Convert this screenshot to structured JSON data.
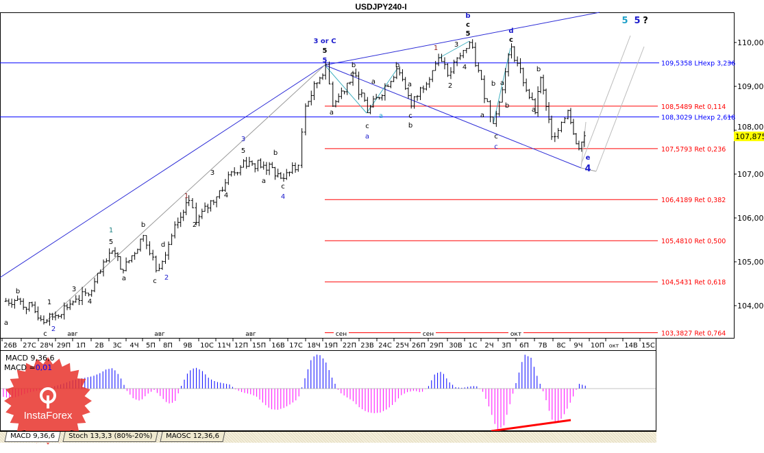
{
  "title": "USDJPY240-I",
  "chart_data": {
    "type": "ohlc-line",
    "symbol": "USDJPY240-I",
    "ylim": [
      103.25,
      110.7
    ],
    "y_ticks": [
      "110,000",
      "109,000",
      "108,000",
      "107,000",
      "106,000",
      "105,000",
      "104,000"
    ],
    "y_tick_values": [
      110,
      109,
      108,
      107,
      106,
      105,
      104
    ],
    "current_price": 107.875,
    "current_price_label": "107,875",
    "x_ticks": [
      "26В",
      "27С",
      "28Ч",
      "29П",
      "1П",
      "2В",
      "3С",
      "4Ч",
      "5П",
      "8П",
      "9В",
      "10С",
      "11Ч",
      "12П",
      "15П",
      "16В",
      "17С",
      "18Ч",
      "19П",
      "22П",
      "23В",
      "24С",
      "25Ч",
      "26П",
      "29П",
      "30В",
      "1С",
      "2Ч",
      "3П",
      "6П",
      "7В",
      "8С",
      "9Ч",
      "10П",
      "окт",
      "14В",
      "15С"
    ],
    "month_marks": [
      "авг",
      "авг",
      "авг",
      "сен",
      "сен",
      "окт"
    ],
    "price_pivots": [
      {
        "day": -0.4,
        "price": 104.1
      },
      {
        "day": 0.4,
        "price": 104.15
      },
      {
        "day": 2.0,
        "price": 103.65
      },
      {
        "day": 3.6,
        "price": 104.15
      },
      {
        "day": 4.3,
        "price": 104.25
      },
      {
        "day": 5.6,
        "price": 105.25
      },
      {
        "day": 6.2,
        "price": 104.8
      },
      {
        "day": 7.3,
        "price": 105.6
      },
      {
        "day": 8.0,
        "price": 104.8
      },
      {
        "day": 9.2,
        "price": 105.9
      },
      {
        "day": 9.8,
        "price": 106.4
      },
      {
        "day": 10.2,
        "price": 105.9
      },
      {
        "day": 11.8,
        "price": 106.8
      },
      {
        "day": 12.8,
        "price": 107.3
      },
      {
        "day": 13.9,
        "price": 107.2
      },
      {
        "day": 15.0,
        "price": 106.9
      },
      {
        "day": 15.8,
        "price": 107.2
      },
      {
        "day": 16.2,
        "price": 108.55
      },
      {
        "day": 17.3,
        "price": 109.5
      },
      {
        "day": 17.7,
        "price": 108.55
      },
      {
        "day": 18.8,
        "price": 109.3
      },
      {
        "day": 19.6,
        "price": 108.4
      },
      {
        "day": 21.2,
        "price": 109.4
      },
      {
        "day": 22.0,
        "price": 108.55
      },
      {
        "day": 23.5,
        "price": 109.65
      },
      {
        "day": 24.0,
        "price": 109.25
      },
      {
        "day": 25.2,
        "price": 110.0
      },
      {
        "day": 26.5,
        "price": 108.15
      },
      {
        "day": 27.5,
        "price": 109.9
      },
      {
        "day": 28.8,
        "price": 108.4
      },
      {
        "day": 29.1,
        "price": 109.2
      },
      {
        "day": 29.7,
        "price": 107.85
      },
      {
        "day": 30.6,
        "price": 108.45
      },
      {
        "day": 31.2,
        "price": 107.58
      },
      {
        "day": 31.5,
        "price": 107.875
      }
    ],
    "levels": [
      {
        "price": 109.5358,
        "label": "109,5358 LHexp 3,236",
        "color": "#0000ff"
      },
      {
        "price": 108.5489,
        "label": "108,5489 Ret 0,114",
        "color": "#ff0000"
      },
      {
        "price": 108.3029,
        "label": "108,3029 LHexp 2,618",
        "color": "#0000ff"
      },
      {
        "price": 107.5793,
        "label": "107,5793 Ret 0,236",
        "color": "#ff0000"
      },
      {
        "price": 106.4189,
        "label": "106,4189 Ret 0,382",
        "color": "#ff0000"
      },
      {
        "price": 105.481,
        "label": "105,4810 Ret 0,500",
        "color": "#ff0000"
      },
      {
        "price": 104.5431,
        "label": "104,5431 Ret 0,618",
        "color": "#ff0000"
      },
      {
        "price": 103.3827,
        "label": "103,3827 Ret 0,764",
        "color": "#ff0000"
      }
    ],
    "wave_labels": [
      {
        "text": "3 or C",
        "color": "#1a1acc"
      },
      {
        "text": "5",
        "color": "#000"
      },
      {
        "text": "5",
        "color": "#1a1acc"
      },
      {
        "text": "b",
        "color": "#1a1acc"
      },
      {
        "text": "c",
        "color": "#000"
      },
      {
        "text": "5",
        "color": "#000"
      },
      {
        "text": "d",
        "color": "#1a1acc"
      },
      {
        "text": "c",
        "color": "#000"
      },
      {
        "text": "5",
        "color": "#1ea0c8"
      },
      {
        "text": "5",
        "color": "#1a1acc"
      },
      {
        "text": "?",
        "color": "#000"
      },
      {
        "text": "e",
        "color": "#1a1acc"
      },
      {
        "text": "4",
        "color": "#1a1acc"
      },
      {
        "text": "a",
        "color": "#1a1acc"
      },
      {
        "text": "c",
        "color": "#000"
      },
      {
        "text": "c",
        "color": "#000"
      },
      {
        "text": "c",
        "color": "#1a1acc"
      },
      {
        "text": "b",
        "color": "#000"
      },
      {
        "text": "c",
        "color": "#000"
      },
      {
        "text": "a",
        "color": "#000"
      },
      {
        "text": "a",
        "color": "#1ea0c8"
      },
      {
        "text": "b",
        "color": "#000"
      },
      {
        "text": "c",
        "color": "#000"
      },
      {
        "text": "a",
        "color": "#000"
      },
      {
        "text": "b",
        "color": "#000"
      },
      {
        "text": "a",
        "color": "#000"
      },
      {
        "text": "1",
        "color": "#8b1a1a"
      },
      {
        "text": "3",
        "color": "#000"
      },
      {
        "text": "4",
        "color": "#000"
      },
      {
        "text": "2",
        "color": "#000"
      },
      {
        "text": "a",
        "color": "#000"
      },
      {
        "text": "b",
        "color": "#000"
      },
      {
        "text": "a",
        "color": "#000"
      },
      {
        "text": "b",
        "color": "#000"
      },
      {
        "text": "a",
        "color": "#000"
      },
      {
        "text": "b",
        "color": "#000"
      },
      {
        "text": "1",
        "color": "#1a8080"
      },
      {
        "text": "5",
        "color": "#000"
      },
      {
        "text": "b",
        "color": "#000"
      },
      {
        "text": "d",
        "color": "#000"
      },
      {
        "text": "a",
        "color": "#000"
      },
      {
        "text": "c",
        "color": "#000"
      },
      {
        "text": "2",
        "color": "#1a1acc"
      },
      {
        "text": "3",
        "color": "#000"
      },
      {
        "text": "4",
        "color": "#000"
      },
      {
        "text": "1",
        "color": "#000"
      },
      {
        "text": "2",
        "color": "#1a1acc"
      },
      {
        "text": "c",
        "color": "#000"
      },
      {
        "text": "b",
        "color": "#000"
      },
      {
        "text": "a",
        "color": "#000"
      },
      {
        "text": "1",
        "color": "#8b1a1a"
      },
      {
        "text": "2",
        "color": "#000"
      },
      {
        "text": "3",
        "color": "#000"
      },
      {
        "text": "4",
        "color": "#000"
      },
      {
        "text": "5",
        "color": "#000"
      },
      {
        "text": "3",
        "color": "#1a1acc"
      },
      {
        "text": "a",
        "color": "#000"
      },
      {
        "text": "b",
        "color": "#000"
      },
      {
        "text": "c",
        "color": "#000"
      },
      {
        "text": "4",
        "color": "#1a1acc"
      }
    ],
    "macd": {
      "label": "MACD 9,36,6",
      "value_prefix": "MACD =",
      "value": "0,01",
      "positive_color": "#0000ff",
      "negative_color": "#ff00ff",
      "histogram": [
        -0.12,
        -0.14,
        -0.12,
        -0.08,
        -0.05,
        -0.03,
        -0.01,
        0.02,
        0.05,
        0.08,
        0.12,
        0.14,
        0.16,
        0.18,
        0.22,
        0.28,
        0.3,
        0.18,
        -0.03,
        -0.15,
        -0.18,
        -0.08,
        -0.02,
        -0.12,
        -0.22,
        -0.2,
        0.05,
        0.25,
        0.31,
        0.26,
        0.15,
        0.1,
        0.08,
        0.06,
        -0.02,
        -0.06,
        -0.08,
        -0.12,
        -0.22,
        -0.3,
        -0.31,
        -0.28,
        -0.22,
        -0.15,
        0.15,
        0.45,
        0.51,
        0.4,
        0.15,
        -0.05,
        -0.12,
        -0.18,
        -0.28,
        -0.34,
        -0.36,
        -0.35,
        -0.3,
        -0.22,
        -0.1,
        -0.05,
        -0.03,
        -0.06,
        0.03,
        0.22,
        0.25,
        0.1,
        0.02,
        0.01,
        0.03,
        0.04,
        -0.05,
        -0.3,
        -0.6,
        -0.55,
        -0.2,
        0.15,
        0.5,
        0.45,
        0.15,
        -0.1,
        -0.45,
        -0.5,
        -0.35,
        -0.15,
        0.07,
        0.04
      ],
      "divergence_color": "#ff0000"
    }
  },
  "tabs": [
    {
      "label": "MACD 9,36,6",
      "active": true
    },
    {
      "label": "Stoch 13,3,3 (80%-20%)",
      "active": false
    },
    {
      "label": "MAOSC 12,36,6",
      "active": false
    }
  ],
  "logo": {
    "text": "InstaForex",
    "color": "#e8322c"
  }
}
